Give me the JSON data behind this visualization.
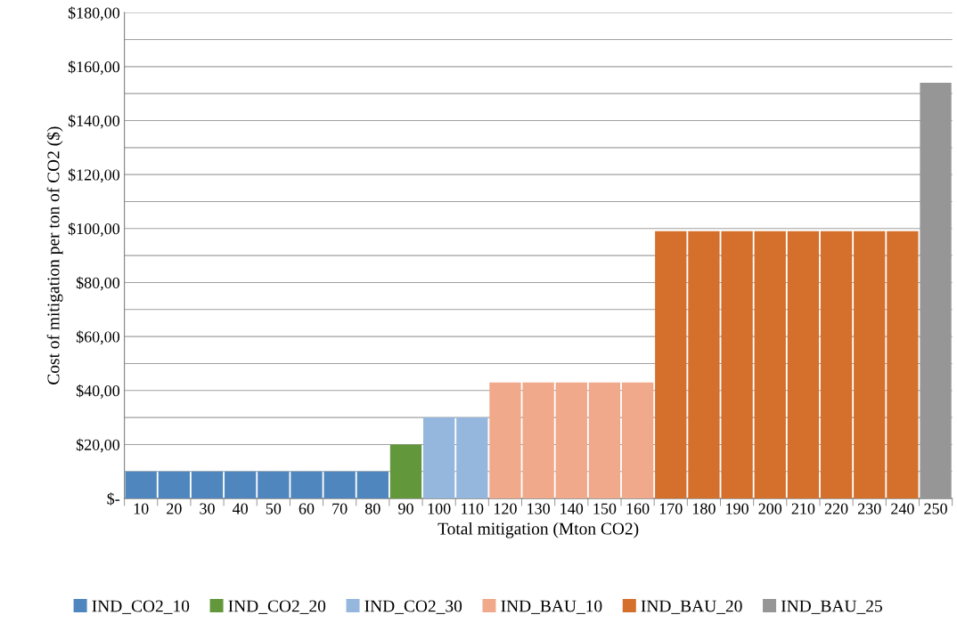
{
  "chart_data": {
    "type": "bar",
    "xlabel": "Total mitigation (Mton CO2)",
    "ylabel": "Cost of mitigation per ton of CO2 ($)",
    "categories": [
      "10",
      "20",
      "30",
      "40",
      "50",
      "60",
      "70",
      "80",
      "90",
      "100",
      "110",
      "120",
      "130",
      "140",
      "150",
      "160",
      "170",
      "180",
      "190",
      "200",
      "210",
      "220",
      "230",
      "240",
      "250"
    ],
    "series": [
      {
        "name": "IND_CO2_10",
        "color": "#4f86be",
        "values": [
          10,
          10,
          10,
          10,
          10,
          10,
          10,
          10,
          null,
          null,
          null,
          null,
          null,
          null,
          null,
          null,
          null,
          null,
          null,
          null,
          null,
          null,
          null,
          null,
          null
        ]
      },
      {
        "name": "IND_CO2_20",
        "color": "#62973b",
        "values": [
          null,
          null,
          null,
          null,
          null,
          null,
          null,
          null,
          20,
          null,
          null,
          null,
          null,
          null,
          null,
          null,
          null,
          null,
          null,
          null,
          null,
          null,
          null,
          null,
          null
        ]
      },
      {
        "name": "IND_CO2_30",
        "color": "#95b7de",
        "values": [
          null,
          null,
          null,
          null,
          null,
          null,
          null,
          null,
          null,
          30,
          30,
          null,
          null,
          null,
          null,
          null,
          null,
          null,
          null,
          null,
          null,
          null,
          null,
          null,
          null
        ]
      },
      {
        "name": "IND_BAU_10",
        "color": "#f0a98a",
        "values": [
          null,
          null,
          null,
          null,
          null,
          null,
          null,
          null,
          null,
          null,
          null,
          43,
          43,
          43,
          43,
          43,
          null,
          null,
          null,
          null,
          null,
          null,
          null,
          null,
          null
        ]
      },
      {
        "name": "IND_BAU_20",
        "color": "#d4702c",
        "values": [
          null,
          null,
          null,
          null,
          null,
          null,
          null,
          null,
          null,
          null,
          null,
          null,
          null,
          null,
          null,
          null,
          99,
          99,
          99,
          99,
          99,
          99,
          99,
          99,
          null
        ]
      },
      {
        "name": "IND_BAU_25",
        "color": "#969696",
        "values": [
          null,
          null,
          null,
          null,
          null,
          null,
          null,
          null,
          null,
          null,
          null,
          null,
          null,
          null,
          null,
          null,
          null,
          null,
          null,
          null,
          null,
          null,
          null,
          null,
          154
        ]
      }
    ],
    "ylim": [
      0,
      180
    ],
    "yticks": [
      {
        "value": 0,
        "label": "$-"
      },
      {
        "value": 10,
        "label": null
      },
      {
        "value": 20,
        "label": "$20,00"
      },
      {
        "value": 30,
        "label": null
      },
      {
        "value": 40,
        "label": "$40,00"
      },
      {
        "value": 50,
        "label": null
      },
      {
        "value": 60,
        "label": "$60,00"
      },
      {
        "value": 70,
        "label": null
      },
      {
        "value": 80,
        "label": "$80,00"
      },
      {
        "value": 90,
        "label": null
      },
      {
        "value": 100,
        "label": "$100,00"
      },
      {
        "value": 110,
        "label": null
      },
      {
        "value": 120,
        "label": "$120,00"
      },
      {
        "value": 130,
        "label": null
      },
      {
        "value": 140,
        "label": "$140,00"
      },
      {
        "value": 150,
        "label": null
      },
      {
        "value": 160,
        "label": "$160,00"
      },
      {
        "value": 170,
        "label": null
      },
      {
        "value": 180,
        "label": "$180,00"
      }
    ],
    "grid": "y",
    "legend": "bottom"
  }
}
